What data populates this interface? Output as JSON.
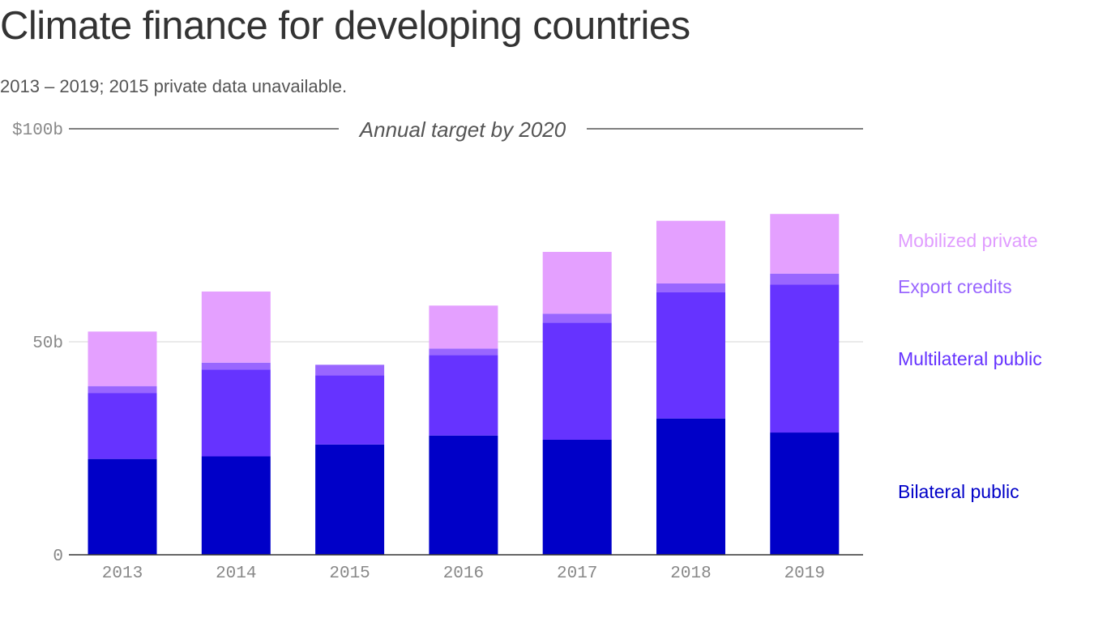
{
  "title": "Climate finance for developing countries",
  "subtitle": "2013 – 2019; 2015 private data unavailable.",
  "chart_data": {
    "type": "bar",
    "stacked": true,
    "categories": [
      "2013",
      "2014",
      "2015",
      "2016",
      "2017",
      "2018",
      "2019"
    ],
    "series": [
      {
        "name": "Bilateral public",
        "color": "#0000c8",
        "values": [
          22.5,
          23.1,
          25.9,
          28.0,
          27.0,
          32.0,
          28.7
        ]
      },
      {
        "name": "Multilateral public",
        "color": "#6633ff",
        "values": [
          15.5,
          20.4,
          16.2,
          18.9,
          27.5,
          29.6,
          34.7
        ]
      },
      {
        "name": "Export credits",
        "color": "#9966ff",
        "values": [
          1.6,
          1.6,
          2.5,
          1.5,
          2.1,
          2.1,
          2.6
        ]
      },
      {
        "name": "Mobilized private",
        "color": "#e4a0ff",
        "values": [
          12.8,
          16.7,
          null,
          10.1,
          14.5,
          14.7,
          14.0
        ]
      }
    ],
    "ylim": [
      0,
      100
    ],
    "yticks": [
      {
        "value": 0,
        "label": "0"
      },
      {
        "value": 50,
        "label": "50b"
      },
      {
        "value": 100,
        "label": "$100b"
      }
    ],
    "annotation": {
      "value": 100,
      "label": "Annual target by 2020"
    },
    "grid": true,
    "legend": "right"
  }
}
